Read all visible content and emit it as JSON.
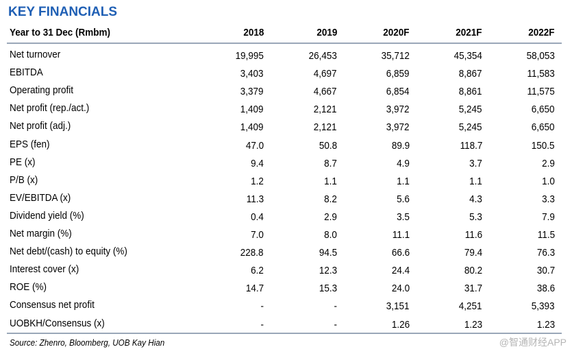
{
  "title": "KEY FINANCIALS",
  "header": {
    "label": "Year  to 31 Dec (Rmbm)",
    "columns": [
      "2018",
      "2019",
      "2020F",
      "2021F",
      "2022F"
    ]
  },
  "rows": [
    {
      "label": "Net turnover",
      "values": [
        "19,995",
        "26,453",
        "35,712",
        "45,354",
        "58,053"
      ]
    },
    {
      "label": "EBITDA",
      "values": [
        "3,403",
        "4,697",
        "6,859",
        "8,867",
        "11,583"
      ]
    },
    {
      "label": "Operating profit",
      "values": [
        "3,379",
        "4,667",
        "6,854",
        "8,861",
        "11,575"
      ]
    },
    {
      "label": "Net profit (rep./act.)",
      "values": [
        "1,409",
        "2,121",
        "3,972",
        "5,245",
        "6,650"
      ]
    },
    {
      "label": "Net profit (adj.)",
      "values": [
        "1,409",
        "2,121",
        "3,972",
        "5,245",
        "6,650"
      ]
    },
    {
      "label": "EPS (fen)",
      "values": [
        "47.0",
        "50.8",
        "89.9",
        "118.7",
        "150.5"
      ]
    },
    {
      "label": "PE (x)",
      "values": [
        "9.4",
        "8.7",
        "4.9",
        "3.7",
        "2.9"
      ]
    },
    {
      "label": "P/B (x)",
      "values": [
        "1.2",
        "1.1",
        "1.1",
        "1.1",
        "1.0"
      ]
    },
    {
      "label": "EV/EBITDA (x)",
      "values": [
        "11.3",
        "8.2",
        "5.6",
        "4.3",
        "3.3"
      ]
    },
    {
      "label": "Dividend yield (%)",
      "values": [
        "0.4",
        "2.9",
        "3.5",
        "5.3",
        "7.9"
      ]
    },
    {
      "label": "Net margin (%)",
      "values": [
        "7.0",
        "8.0",
        "11.1",
        "11.6",
        "11.5"
      ]
    },
    {
      "label": "Net debt/(cash) to equity (%)",
      "values": [
        "228.8",
        "94.5",
        "66.6",
        "79.4",
        "76.3"
      ]
    },
    {
      "label": "Interest cover (x)",
      "values": [
        "6.2",
        "12.3",
        "24.4",
        "80.2",
        "30.7"
      ]
    },
    {
      "label": "ROE (%)",
      "values": [
        "14.7",
        "15.3",
        "24.0",
        "31.7",
        "38.6"
      ]
    },
    {
      "label": "Consensus net profit",
      "values": [
        "-",
        "-",
        "3,151",
        "4,251",
        "5,393"
      ]
    },
    {
      "label": "UOBKH/Consensus (x)",
      "values": [
        "-",
        "-",
        "1.26",
        "1.23",
        "1.23"
      ]
    }
  ],
  "source": "Source: Zhenro, Bloomberg, UOB Kay Hian",
  "watermark": "@智通财经APP"
}
